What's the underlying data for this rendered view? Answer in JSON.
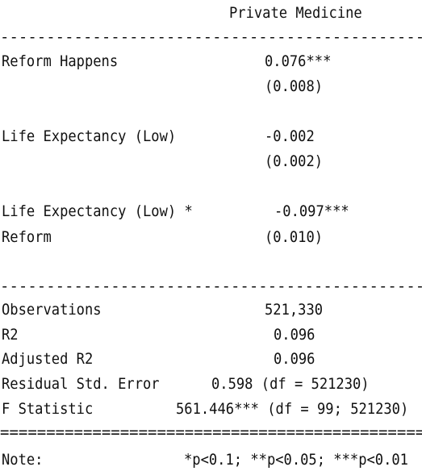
{
  "table": {
    "column_header": "Private Medicine",
    "rule_dash": "------------------------------------------------------------",
    "rule_eq": "============================================================",
    "rows": [
      {
        "label": "Reform Happens",
        "coef": "0.076***",
        "se": "(0.008)"
      },
      {
        "label": "Life Expectancy (Low)",
        "coef": "-0.002",
        "se": "(0.002)"
      },
      {
        "label": "Life Expectancy (Low) *",
        "label2": "Reform",
        "coef": "-0.097***",
        "se": "(0.010)"
      }
    ],
    "stats": [
      {
        "label": "Observations",
        "value": "521,330"
      },
      {
        "label": "R2",
        "value": "0.096"
      },
      {
        "label": "Adjusted R2",
        "value": "0.096"
      },
      {
        "label": "Residual Std. Error",
        "value": "0.598 (df = 521230)"
      },
      {
        "label": "F Statistic",
        "value": "561.446*** (df = 99; 521230)"
      }
    ],
    "note_label": "Note:",
    "note_text": "*p<0.1; **p<0.05; ***p<0.01"
  }
}
